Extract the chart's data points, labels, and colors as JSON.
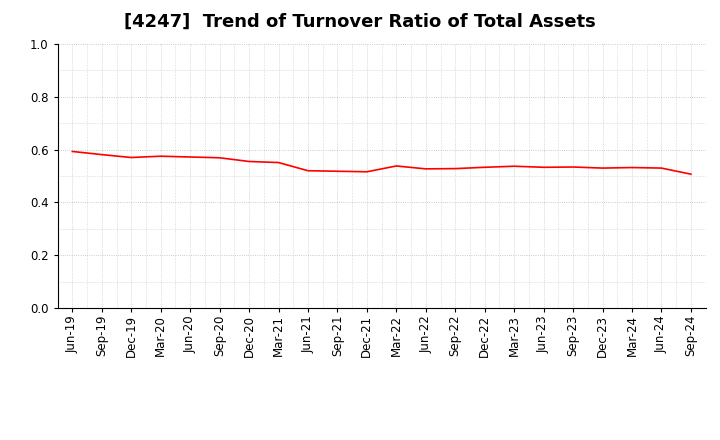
{
  "title": "[4247]  Trend of Turnover Ratio of Total Assets",
  "x_labels": [
    "Jun-19",
    "Sep-19",
    "Dec-19",
    "Mar-20",
    "Jun-20",
    "Sep-20",
    "Dec-20",
    "Mar-21",
    "Jun-21",
    "Sep-21",
    "Dec-21",
    "Mar-22",
    "Jun-22",
    "Sep-22",
    "Dec-22",
    "Mar-23",
    "Jun-23",
    "Sep-23",
    "Dec-23",
    "Mar-24",
    "Jun-24",
    "Sep-24"
  ],
  "values": [
    0.593,
    0.581,
    0.57,
    0.575,
    0.572,
    0.569,
    0.555,
    0.551,
    0.52,
    0.518,
    0.516,
    0.538,
    0.527,
    0.528,
    0.533,
    0.537,
    0.533,
    0.534,
    0.53,
    0.532,
    0.53,
    0.507
  ],
  "line_color": "#FF0000",
  "line_width": 1.2,
  "ylim": [
    0.0,
    1.0
  ],
  "yticks": [
    0.0,
    0.2,
    0.4,
    0.6,
    0.8,
    1.0
  ],
  "grid_color": "#bbbbbb",
  "background_color": "#ffffff",
  "title_fontsize": 13,
  "tick_fontsize": 8.5
}
